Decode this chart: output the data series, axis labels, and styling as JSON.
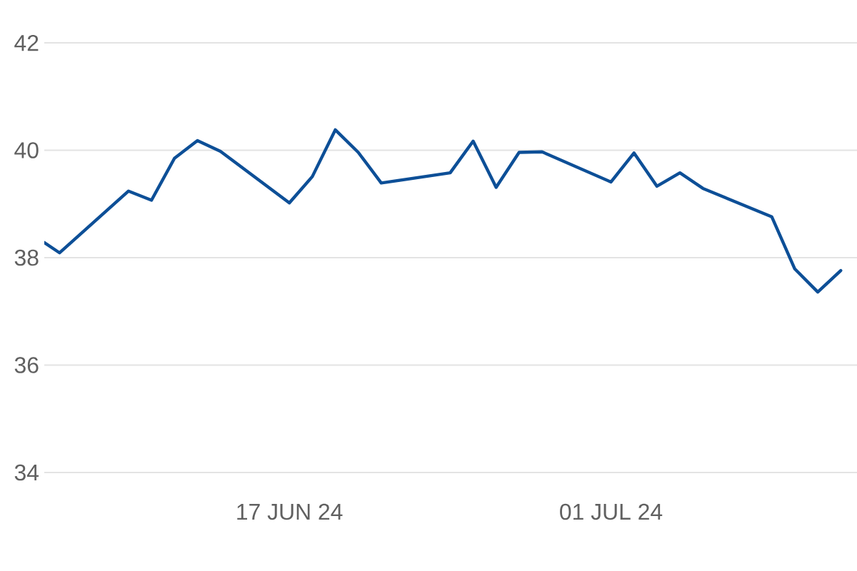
{
  "chart_data": {
    "type": "line",
    "x": [
      "2024-06-06T08:00",
      "2024-06-07",
      "2024-06-10",
      "2024-06-11",
      "2024-06-12",
      "2024-06-13",
      "2024-06-14",
      "2024-06-17",
      "2024-06-18",
      "2024-06-19",
      "2024-06-20",
      "2024-06-21",
      "2024-06-24",
      "2024-06-25",
      "2024-06-26",
      "2024-06-27",
      "2024-06-28",
      "2024-07-01",
      "2024-07-02",
      "2024-07-03",
      "2024-07-04",
      "2024-07-05",
      "2024-07-08",
      "2024-07-09",
      "2024-07-10",
      "2024-07-11"
    ],
    "values": [
      38.28,
      38.09,
      39.24,
      39.07,
      39.85,
      40.18,
      39.98,
      39.02,
      39.51,
      40.38,
      39.96,
      39.39,
      39.58,
      40.17,
      39.31,
      39.96,
      39.97,
      39.41,
      39.95,
      39.33,
      39.58,
      39.29,
      38.76,
      37.79,
      37.36,
      37.76
    ],
    "color": "#0d4f97",
    "xlim": [
      "2024-06-06T08:00",
      "2024-07-11T17:00"
    ],
    "xticks": [
      {
        "value": "2024-06-17",
        "label": "17 JUN 24"
      },
      {
        "value": "2024-07-01",
        "label": "01 JUL 24"
      }
    ],
    "ylim": [
      34,
      42
    ],
    "yticks": [
      34,
      36,
      38,
      40,
      42
    ],
    "grid": "y",
    "line_style": "solid"
  }
}
